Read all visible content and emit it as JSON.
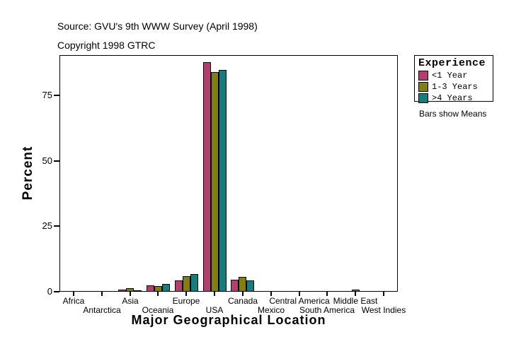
{
  "header": {
    "source_line": "Source: GVU's 9th WWW Survey (April 1998)",
    "copyright_line": "Copyright 1998 GTRC"
  },
  "chart_data": {
    "type": "bar",
    "title": "",
    "xlabel": "Major Geographical Location",
    "ylabel": "Percent",
    "ylim": [
      0,
      90
    ],
    "yticks": [
      0,
      25,
      50,
      75
    ],
    "grid": false,
    "legend_position": "right",
    "categories": [
      "Africa",
      "Antarctica",
      "Asia",
      "Oceania",
      "Europe",
      "USA",
      "Canada",
      "Mexico",
      "Central America",
      "South America",
      "Middle East",
      "West Indies"
    ],
    "series": [
      {
        "name": "<1 Year",
        "color": "#b23f6d",
        "values": [
          0.3,
          0.1,
          0.8,
          2.3,
          4.3,
          87.7,
          4.7,
          0.4,
          0.2,
          0.3,
          0.3,
          0.1
        ]
      },
      {
        "name": "1-3 Years",
        "color": "#7f7f12",
        "values": [
          0.3,
          0.1,
          1.3,
          2.2,
          5.9,
          84.0,
          5.7,
          0.2,
          0.2,
          0.2,
          0.7,
          0.1
        ]
      },
      {
        "name": ">4 Years",
        "color": "#157d7d",
        "values": [
          0.3,
          0.1,
          0.6,
          2.9,
          6.8,
          84.6,
          4.4,
          0.2,
          0.3,
          0.3,
          0.3,
          0.1
        ]
      }
    ],
    "note": "Bars show Means"
  },
  "legend": {
    "title": "Experience",
    "items": [
      {
        "label": "<1 Year",
        "color": "#b23f6d"
      },
      {
        "label": "1-3 Years",
        "color": "#7f7f12"
      },
      {
        "label": ">4 Years",
        "color": "#157d7d"
      }
    ],
    "note": "Bars show Means"
  }
}
